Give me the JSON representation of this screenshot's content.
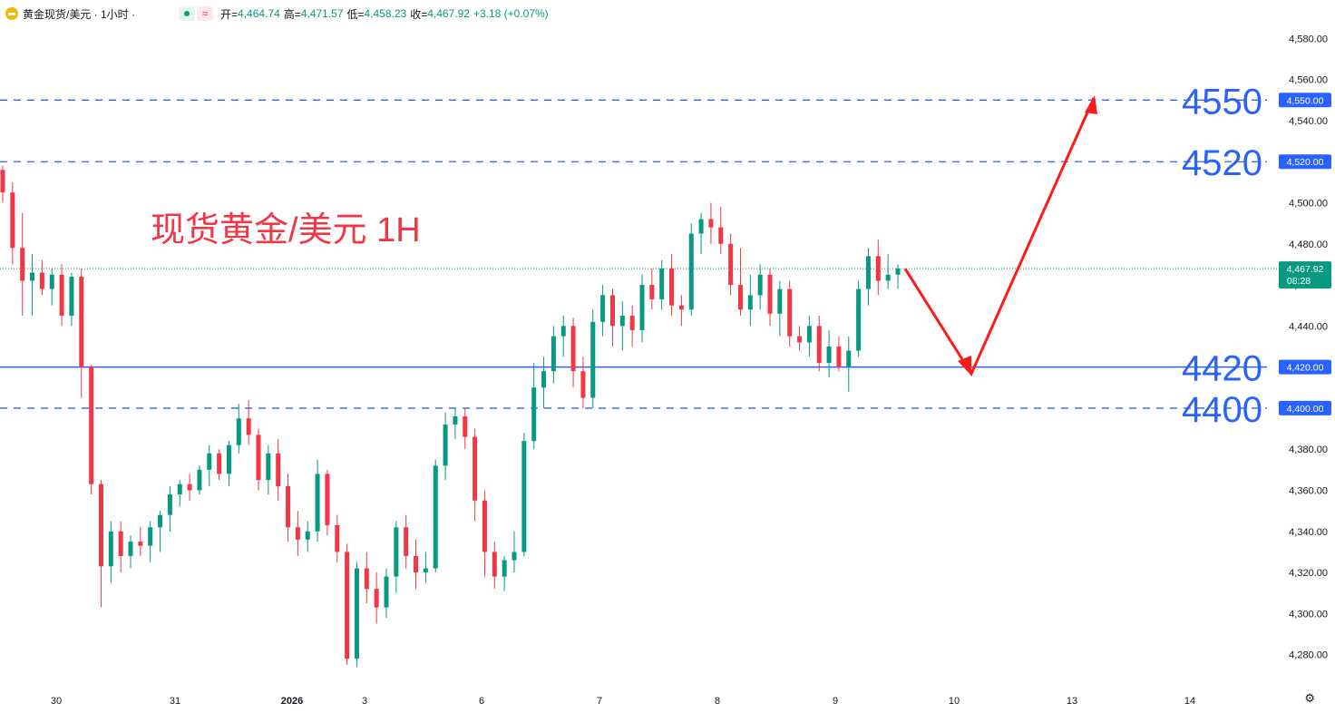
{
  "header": {
    "symbol": "黄金现货/美元 · 1小时 ·",
    "open_label": "开=",
    "open": "4,464.74",
    "high_label": "高=",
    "high": "4,471.57",
    "low_label": "低=",
    "low": "4,458.23",
    "close_label": "收=",
    "close": "4,467.92",
    "change": "+3.18 (+0.07%)"
  },
  "colors": {
    "up": "#089981",
    "down": "#f23645",
    "line": "#2962ff",
    "arrow": "#ff1a1a",
    "annotation_big": "#2962ff",
    "title_text": "#f23645"
  },
  "chart_data": {
    "type": "candlestick",
    "title": "现货黄金/美元 1H",
    "y_range": [
      4271,
      4589
    ],
    "y_ticks": [
      4280,
      4300,
      4320,
      4340,
      4360,
      4380,
      4400,
      4420,
      4440,
      4460,
      4480,
      4500,
      4520,
      4540,
      4560,
      4580
    ],
    "y_tick_labels": [
      "4,280.00",
      "4,300.00",
      "4,320.00",
      "4,340.00",
      "4,360.00",
      "4,380.00",
      "4,400.00",
      "4,420.00",
      "4,440.00",
      "4,460.00",
      "4,480.00",
      "4,500.00",
      "4,520.00",
      "4,540.00",
      "4,560.00",
      "4,580.00"
    ],
    "x_labels": [
      "30",
      "31",
      "2026",
      "3",
      "6",
      "7",
      "8",
      "9",
      "10",
      "13",
      "14"
    ],
    "last_price": "4,467.92",
    "countdown": "08:28",
    "levels": [
      {
        "value": 4550,
        "label": "4550",
        "axis_label": "4,550.00",
        "style": "dashed"
      },
      {
        "value": 4520,
        "label": "4520",
        "axis_label": "4,520.00",
        "style": "dashed"
      },
      {
        "value": 4420,
        "label": "4420",
        "axis_label": "4,420.00",
        "style": "solid"
      },
      {
        "value": 4400,
        "label": "4400",
        "axis_label": "4,400.00",
        "style": "dashed"
      }
    ],
    "candles": [
      [
        4516,
        4518,
        4500,
        4505
      ],
      [
        4505,
        4510,
        4470,
        4478
      ],
      [
        4478,
        4495,
        4445,
        4462
      ],
      [
        4462,
        4475,
        4445,
        4466
      ],
      [
        4466,
        4472,
        4455,
        4458
      ],
      [
        4458,
        4468,
        4450,
        4465
      ],
      [
        4465,
        4470,
        4440,
        4445
      ],
      [
        4445,
        4466,
        4440,
        4464
      ],
      [
        4464,
        4468,
        4405,
        4420
      ],
      [
        4420,
        4421,
        4358,
        4363
      ],
      [
        4363,
        4365,
        4303,
        4323
      ],
      [
        4323,
        4345,
        4315,
        4340
      ],
      [
        4340,
        4345,
        4320,
        4328
      ],
      [
        4328,
        4338,
        4322,
        4335
      ],
      [
        4335,
        4342,
        4328,
        4333
      ],
      [
        4333,
        4345,
        4325,
        4342
      ],
      [
        4342,
        4350,
        4330,
        4348
      ],
      [
        4348,
        4362,
        4340,
        4358
      ],
      [
        4358,
        4365,
        4352,
        4363
      ],
      [
        4363,
        4368,
        4355,
        4360
      ],
      [
        4360,
        4372,
        4358,
        4370
      ],
      [
        4370,
        4382,
        4362,
        4378
      ],
      [
        4378,
        4380,
        4365,
        4368
      ],
      [
        4368,
        4384,
        4362,
        4382
      ],
      [
        4382,
        4402,
        4378,
        4395
      ],
      [
        4395,
        4404,
        4382,
        4387
      ],
      [
        4387,
        4390,
        4360,
        4365
      ],
      [
        4365,
        4382,
        4358,
        4378
      ],
      [
        4378,
        4385,
        4355,
        4362
      ],
      [
        4362,
        4368,
        4335,
        4342
      ],
      [
        4342,
        4350,
        4328,
        4336
      ],
      [
        4336,
        4345,
        4330,
        4340
      ],
      [
        4340,
        4375,
        4335,
        4368
      ],
      [
        4368,
        4370,
        4338,
        4343
      ],
      [
        4343,
        4348,
        4325,
        4330
      ],
      [
        4330,
        4334,
        4275,
        4278
      ],
      [
        4278,
        4325,
        4274,
        4322
      ],
      [
        4322,
        4330,
        4305,
        4312
      ],
      [
        4312,
        4320,
        4295,
        4303
      ],
      [
        4303,
        4322,
        4298,
        4318
      ],
      [
        4318,
        4345,
        4310,
        4342
      ],
      [
        4342,
        4348,
        4322,
        4328
      ],
      [
        4328,
        4336,
        4312,
        4320
      ],
      [
        4320,
        4330,
        4315,
        4322
      ],
      [
        4322,
        4375,
        4320,
        4372
      ],
      [
        4372,
        4398,
        4365,
        4392
      ],
      [
        4392,
        4400,
        4385,
        4396
      ],
      [
        4396,
        4400,
        4380,
        4386
      ],
      [
        4386,
        4390,
        4345,
        4355
      ],
      [
        4355,
        4360,
        4318,
        4330
      ],
      [
        4330,
        4335,
        4312,
        4318
      ],
      [
        4318,
        4328,
        4311,
        4326
      ],
      [
        4326,
        4340,
        4320,
        4330
      ],
      [
        4330,
        4388,
        4328,
        4384
      ],
      [
        4384,
        4422,
        4380,
        4410
      ],
      [
        4410,
        4425,
        4400,
        4418
      ],
      [
        4418,
        4440,
        4412,
        4435
      ],
      [
        4435,
        4445,
        4425,
        4440
      ],
      [
        4440,
        4444,
        4410,
        4418
      ],
      [
        4418,
        4425,
        4400,
        4405
      ],
      [
        4405,
        4448,
        4400,
        4442
      ],
      [
        4442,
        4460,
        4435,
        4455
      ],
      [
        4455,
        4458,
        4430,
        4440
      ],
      [
        4440,
        4452,
        4428,
        4445
      ],
      [
        4445,
        4450,
        4430,
        4438
      ],
      [
        4438,
        4465,
        4432,
        4460
      ],
      [
        4460,
        4468,
        4448,
        4453
      ],
      [
        4453,
        4472,
        4448,
        4468
      ],
      [
        4468,
        4475,
        4445,
        4450
      ],
      [
        4450,
        4455,
        4440,
        4448
      ],
      [
        4448,
        4490,
        4445,
        4485
      ],
      [
        4485,
        4495,
        4475,
        4492
      ],
      [
        4492,
        4500,
        4480,
        4488
      ],
      [
        4488,
        4498,
        4475,
        4480
      ],
      [
        4480,
        4485,
        4455,
        4460
      ],
      [
        4460,
        4478,
        4445,
        4448
      ],
      [
        4448,
        4465,
        4440,
        4455
      ],
      [
        4455,
        4470,
        4448,
        4465
      ],
      [
        4465,
        4468,
        4440,
        4446
      ],
      [
        4446,
        4462,
        4435,
        4458
      ],
      [
        4458,
        4462,
        4430,
        4435
      ],
      [
        4435,
        4440,
        4428,
        4432
      ],
      [
        4432,
        4445,
        4425,
        4440
      ],
      [
        4440,
        4445,
        4418,
        4422
      ],
      [
        4422,
        4438,
        4415,
        4430
      ],
      [
        4430,
        4435,
        4418,
        4420
      ],
      [
        4420,
        4435,
        4408,
        4428
      ],
      [
        4428,
        4462,
        4425,
        4458
      ],
      [
        4458,
        4478,
        4450,
        4474
      ],
      [
        4474,
        4482,
        4455,
        4462
      ],
      [
        4462,
        4475,
        4458,
        4465
      ],
      [
        4465,
        4470,
        4458,
        4468
      ]
    ]
  }
}
